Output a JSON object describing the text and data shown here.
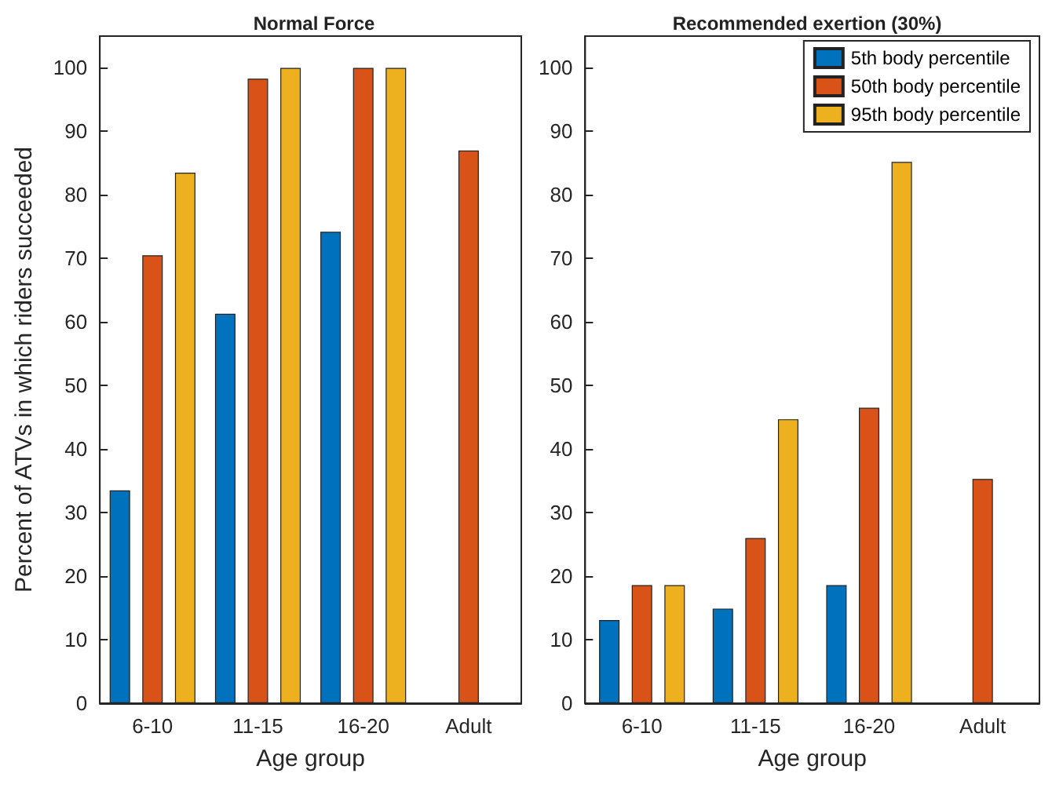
{
  "chart_data": [
    {
      "type": "bar",
      "title": "Normal Force",
      "xlabel": "Age group",
      "ylabel": "Percent of ATVs in which riders succeeded",
      "categories": [
        "6-10",
        "11-15",
        "16-20",
        "Adult"
      ],
      "series": [
        {
          "color": "#0072bd",
          "values": [
            33.5,
            61.3,
            74.2,
            null
          ]
        },
        {
          "color": "#d95319",
          "values": [
            70.5,
            98.3,
            100,
            87
          ]
        },
        {
          "color": "#edb120",
          "values": [
            83.5,
            100,
            100,
            null
          ]
        }
      ],
      "ylim": [
        0,
        105
      ],
      "yticks": [
        0,
        10,
        20,
        30,
        40,
        50,
        60,
        70,
        80,
        90,
        100
      ],
      "grid": false,
      "legend": false
    },
    {
      "type": "bar",
      "title": "Recommended exertion (30%)",
      "xlabel": "Age group",
      "categories": [
        "6-10",
        "11-15",
        "16-20",
        "Adult"
      ],
      "series": [
        {
          "name": "5th body percentile",
          "color": "#0072bd",
          "values": [
            13.1,
            14.9,
            18.6,
            null
          ]
        },
        {
          "name": "50th body percentile",
          "color": "#d95319",
          "values": [
            18.6,
            26,
            46.5,
            35.3
          ]
        },
        {
          "name": "95th body percentile",
          "color": "#edb120",
          "values": [
            18.6,
            44.7,
            85.2,
            null
          ]
        }
      ],
      "ylim": [
        0,
        105
      ],
      "yticks": [
        0,
        10,
        20,
        30,
        40,
        50,
        60,
        70,
        80,
        90,
        100
      ],
      "grid": false,
      "legend": "top right"
    }
  ]
}
